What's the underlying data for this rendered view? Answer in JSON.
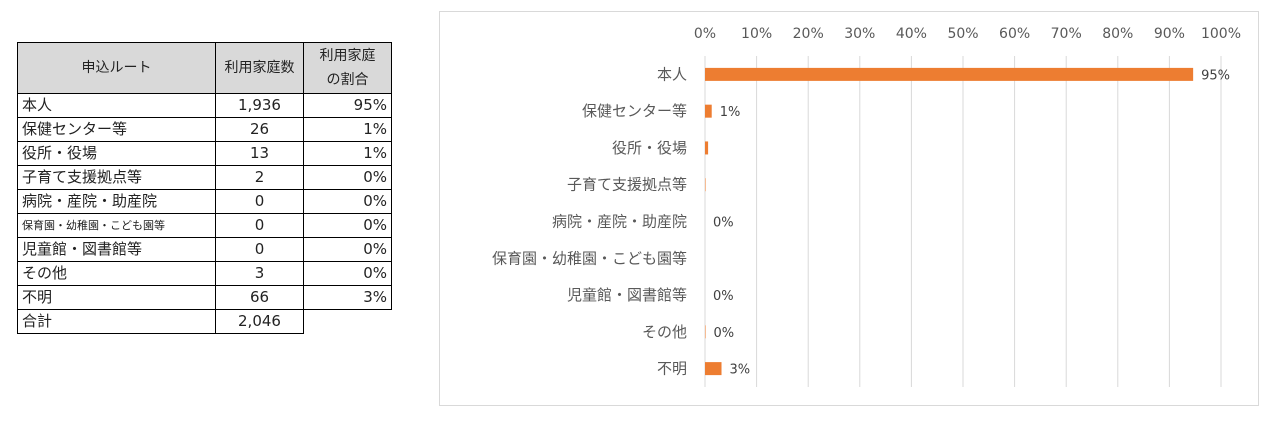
{
  "table": {
    "headers": {
      "route": "申込ルート",
      "count": "利用家庭数",
      "pct_line1": "利用家庭",
      "pct_line2": "の割合"
    },
    "rows": [
      {
        "route": "本人",
        "count": "1,936",
        "pct": "95%"
      },
      {
        "route": "保健センター等",
        "count": "26",
        "pct": "1%"
      },
      {
        "route": "役所・役場",
        "count": "13",
        "pct": "1%"
      },
      {
        "route": "子育て支援拠点等",
        "count": "2",
        "pct": "0%"
      },
      {
        "route": "病院・産院・助産院",
        "count": "0",
        "pct": "0%"
      },
      {
        "route": "保育園・幼稚園・こども園等",
        "count": "0",
        "pct": "0%"
      },
      {
        "route": "児童館・図書館等",
        "count": "0",
        "pct": "0%"
      },
      {
        "route": "その他",
        "count": "3",
        "pct": "0%"
      },
      {
        "route": "不明",
        "count": "66",
        "pct": "3%"
      }
    ],
    "total": {
      "route": "合計",
      "count": "2,046"
    }
  },
  "chart_data": {
    "type": "bar",
    "orientation": "horizontal",
    "categories": [
      "本人",
      "保健センター等",
      "役所・役場",
      "子育て支援拠点等",
      "病院・産院・助産院",
      "保育園・幼稚園・こども園等",
      "児童館・図書館等",
      "その他",
      "不明"
    ],
    "values": [
      94.6,
      1.3,
      0.6,
      0.1,
      0,
      0,
      0,
      0.1,
      3.2
    ],
    "data_labels": [
      "95%",
      "1%",
      "",
      "",
      "0%",
      "",
      "0%",
      "0%",
      "3%"
    ],
    "xlim": [
      0,
      100
    ],
    "x_ticks": [
      "0%",
      "10%",
      "20%",
      "30%",
      "40%",
      "50%",
      "60%",
      "70%",
      "80%",
      "90%",
      "100%"
    ],
    "axis_position": "top",
    "grid": true,
    "bar_color": "#ed7d31",
    "grid_color": "#d9d9d9"
  }
}
